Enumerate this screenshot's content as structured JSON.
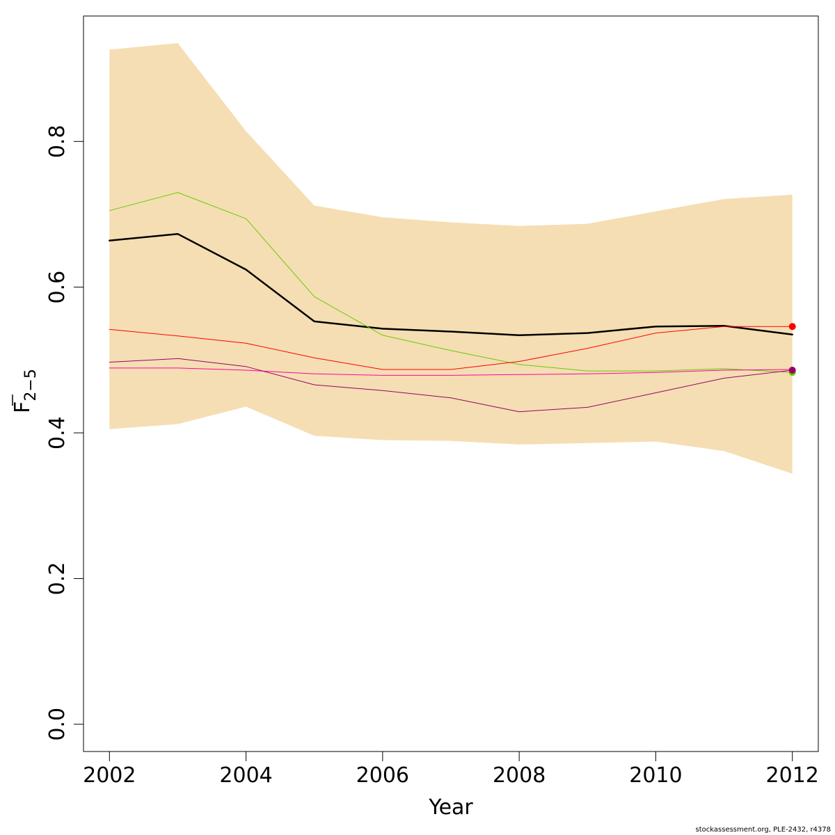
{
  "chart_data": {
    "type": "line",
    "xlabel": "Year",
    "ylabel_main": "F",
    "ylabel_sub": "2−5",
    "xlim": [
      2001.62,
      2012.38
    ],
    "ylim": [
      -0.0374,
      0.9722
    ],
    "x_ticks": [
      2002,
      2004,
      2006,
      2008,
      2010,
      2012
    ],
    "x_tick_labels": [
      "2002",
      "2004",
      "2006",
      "2008",
      "2010",
      "2012"
    ],
    "y_ticks": [
      0.0,
      0.2,
      0.4,
      0.6,
      0.8
    ],
    "y_tick_labels": [
      "0.0",
      "0.2",
      "0.4",
      "0.6",
      "0.8"
    ],
    "grid": false,
    "x": [
      2002,
      2003,
      2004,
      2005,
      2006,
      2007,
      2008,
      2009,
      2010,
      2011,
      2012
    ],
    "confidence_band": {
      "color": "#F5DEB3",
      "lower": [
        0.405,
        0.412,
        0.436,
        0.396,
        0.39,
        0.389,
        0.384,
        0.386,
        0.388,
        0.375,
        0.344
      ],
      "upper": [
        0.926,
        0.935,
        0.814,
        0.712,
        0.696,
        0.689,
        0.684,
        0.687,
        0.704,
        0.721,
        0.727
      ]
    },
    "series": [
      {
        "color": "#000000",
        "width": 2.5,
        "marker": false,
        "values": [
          0.664,
          0.673,
          0.624,
          0.553,
          0.543,
          0.539,
          0.534,
          0.537,
          0.546,
          0.547,
          0.535
        ]
      },
      {
        "color": "#66CC00",
        "width": 1,
        "marker": true,
        "values": [
          0.705,
          0.73,
          0.694,
          0.587,
          0.534,
          0.513,
          0.494,
          0.485,
          0.485,
          0.488,
          0.483
        ]
      },
      {
        "color": "#FF0000",
        "width": 1,
        "marker": true,
        "values": [
          0.542,
          0.533,
          0.523,
          0.503,
          0.487,
          0.487,
          0.498,
          0.516,
          0.537,
          0.546,
          0.546
        ]
      },
      {
        "color": "#FF00A0",
        "width": 1,
        "marker": false,
        "values": [
          0.489,
          0.489,
          0.486,
          0.481,
          0.479,
          0.479,
          0.48,
          0.481,
          0.483,
          0.486,
          0.487
        ]
      },
      {
        "color": "#990066",
        "width": 1,
        "marker": true,
        "values": [
          0.497,
          0.502,
          0.491,
          0.466,
          0.458,
          0.448,
          0.429,
          0.435,
          0.455,
          0.475,
          0.486
        ]
      }
    ]
  },
  "footer": "stockassessment.org, PLE-2432, r4378"
}
